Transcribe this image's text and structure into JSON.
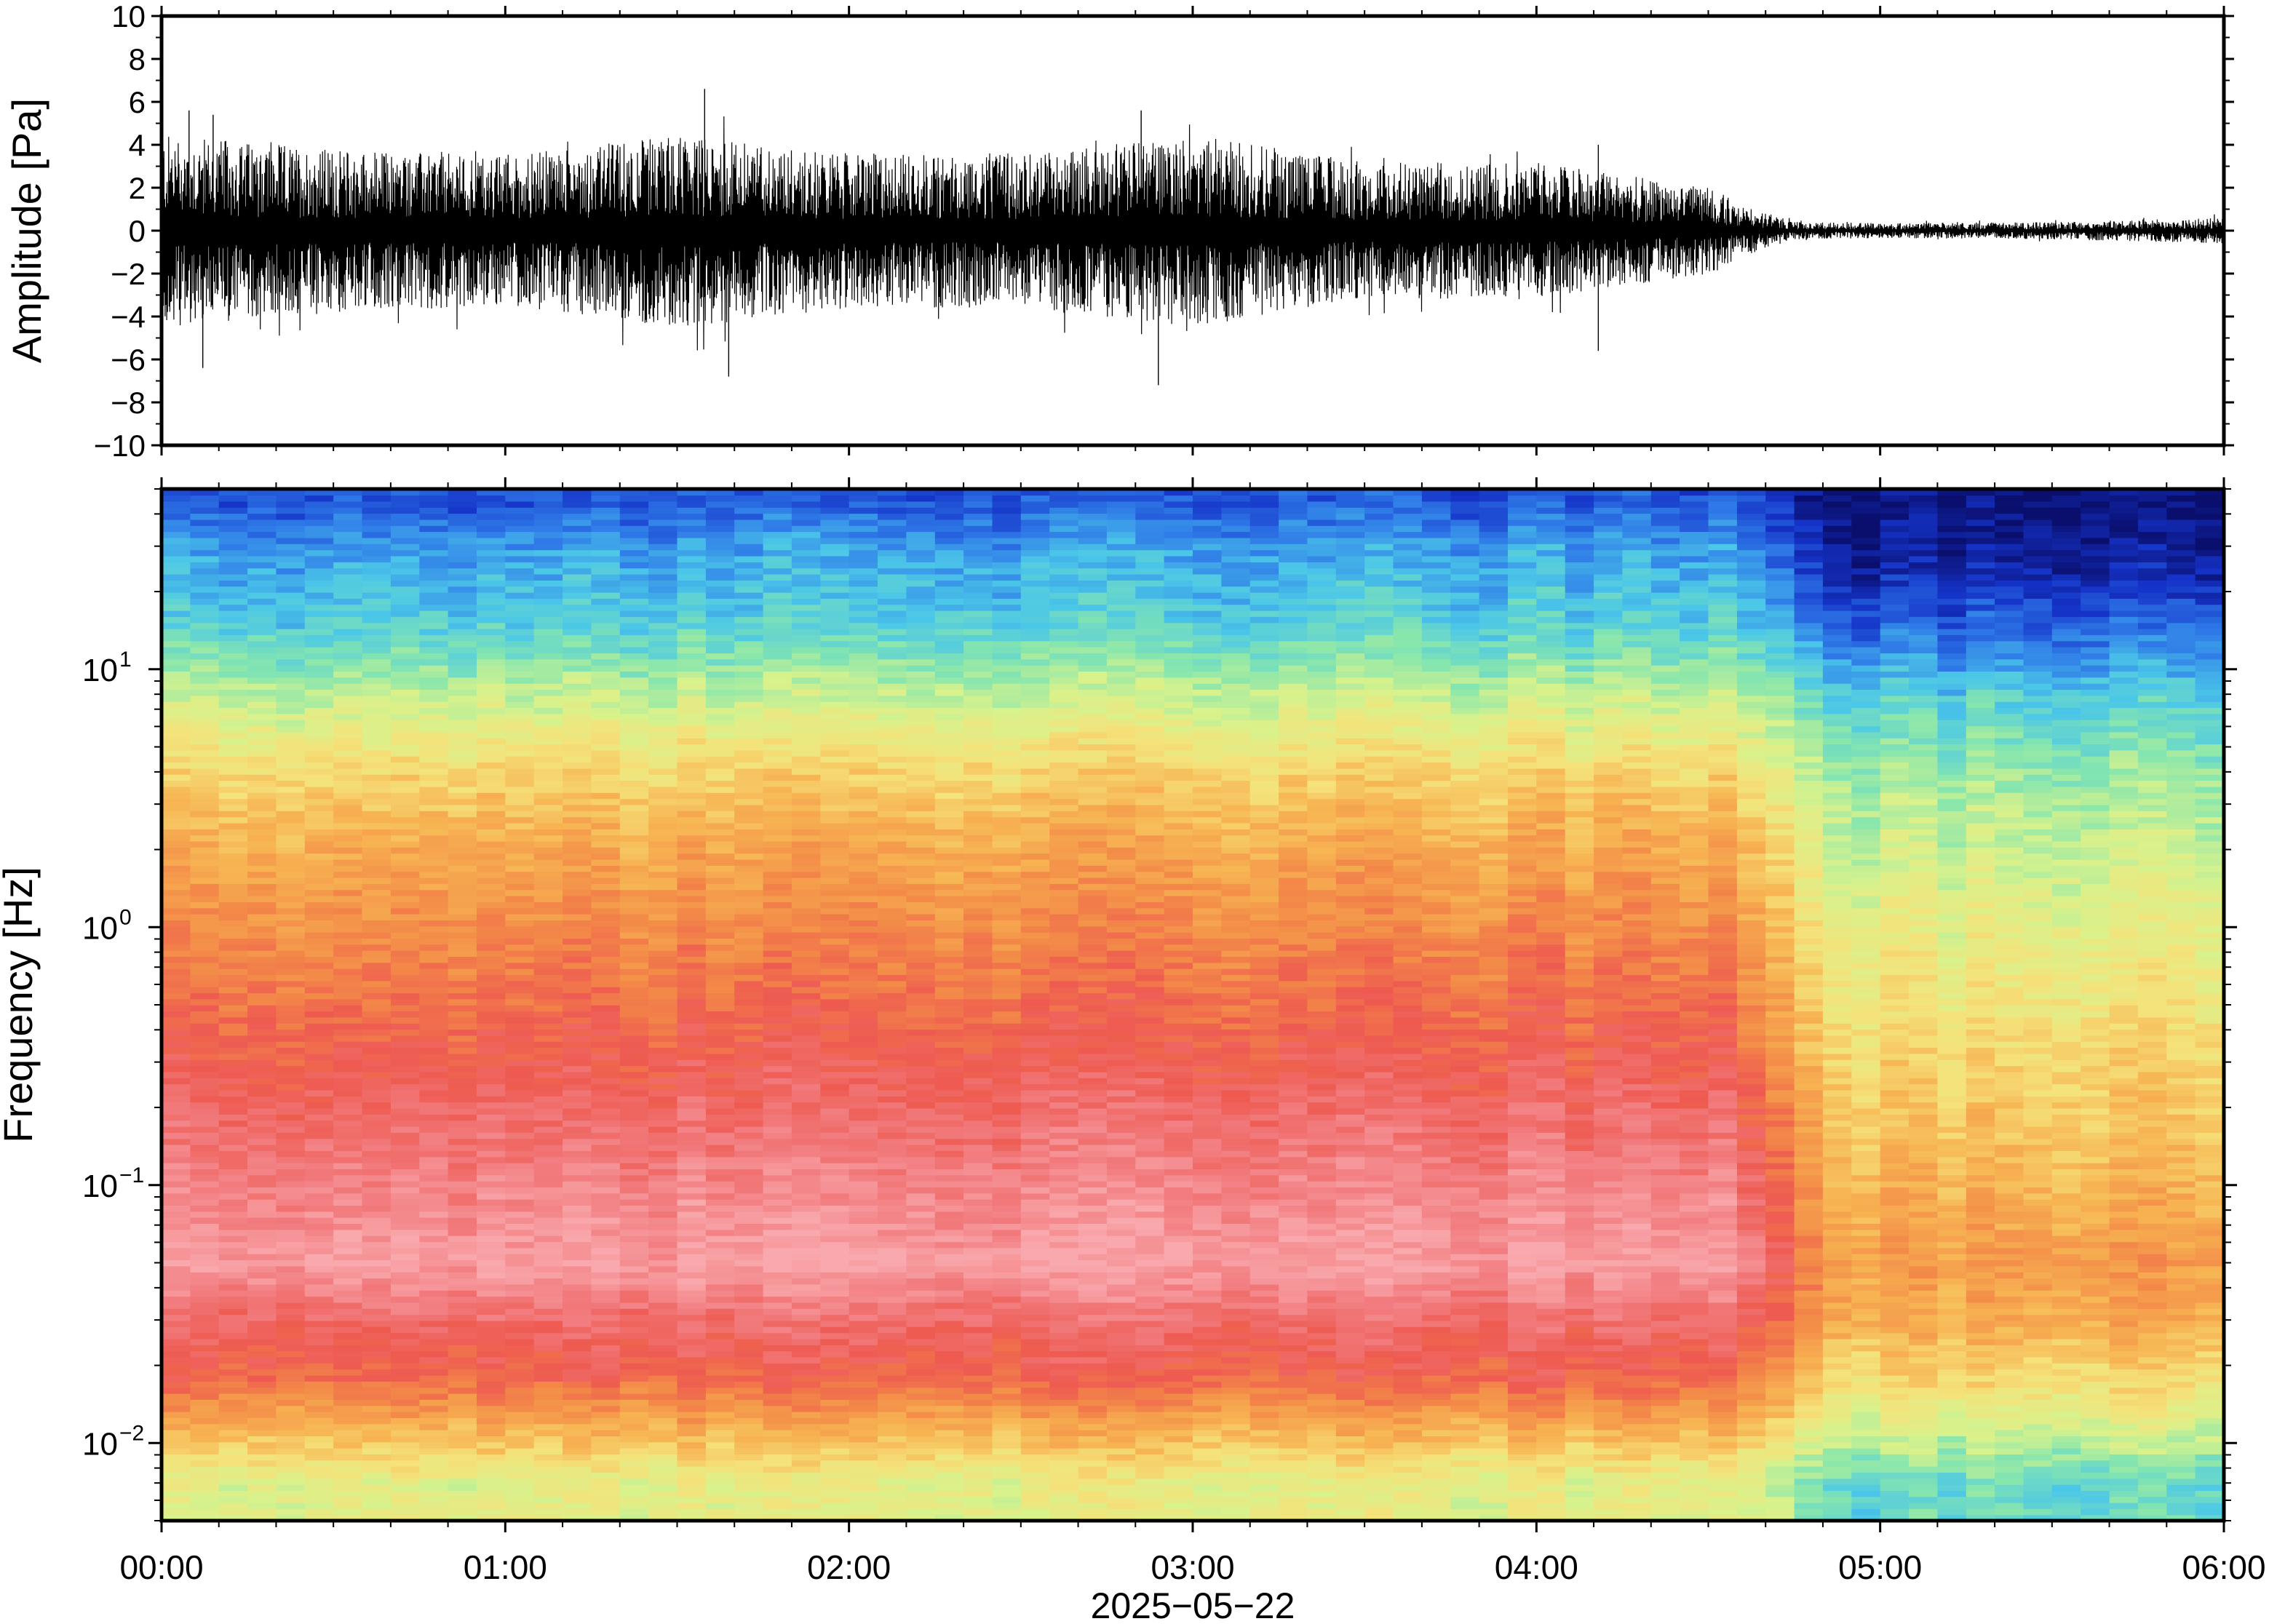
{
  "chart_data": [
    {
      "type": "line",
      "ylabel": "Amplitude [Pa]",
      "ylim": [
        -10,
        10
      ],
      "yticks": [
        "10",
        "8",
        "6",
        "4",
        "2",
        "0",
        "−2",
        "−4",
        "−6",
        "−8",
        "−10"
      ],
      "ytick_values": [
        10,
        8,
        6,
        4,
        2,
        0,
        -2,
        -4,
        -6,
        -8,
        -10
      ],
      "xlim": [
        "00:00",
        "06:00"
      ],
      "series": [
        {
          "envelope_hours": [
            0,
            0.5,
            1,
            1.5,
            2,
            2.5,
            3,
            3.5,
            4,
            4.5,
            4.6,
            4.75,
            5,
            5.5,
            6
          ],
          "envelope_max_pa": [
            4.5,
            3.8,
            3.5,
            4.5,
            3.6,
            3.6,
            4.5,
            3.2,
            3.2,
            2.0,
            1.2,
            0.4,
            0.35,
            0.4,
            0.6
          ],
          "envelope_min_pa": [
            -4.5,
            -3.8,
            -3.5,
            -4.5,
            -3.6,
            -3.6,
            -4.5,
            -3.2,
            -3.2,
            -2.0,
            -1.2,
            -0.4,
            -0.35,
            -0.4,
            -0.6
          ],
          "peaks": [
            {
              "hour": 0.08,
              "pa": 5.6
            },
            {
              "hour": 0.12,
              "pa": -6.4
            },
            {
              "hour": 0.15,
              "pa": 5.4
            },
            {
              "hour": 1.58,
              "pa": 6.6
            },
            {
              "hour": 1.65,
              "pa": -6.8
            },
            {
              "hour": 2.85,
              "pa": 5.6
            },
            {
              "hour": 2.9,
              "pa": -7.2
            },
            {
              "hour": 4.18,
              "pa": 4.0
            },
            {
              "hour": 4.18,
              "pa": -5.6
            }
          ],
          "color": "#000000"
        }
      ]
    },
    {
      "type": "heatmap",
      "xlabel": "2025−05−22",
      "ylabel": "Frequency [Hz]",
      "yscale": "log",
      "ylim_hz": [
        0.005,
        50
      ],
      "yticks": [
        {
          "base": "10",
          "exp": "1",
          "value": 10
        },
        {
          "base": "10",
          "exp": "0",
          "value": 1
        },
        {
          "base": "10",
          "exp": "−1",
          "value": 0.1
        },
        {
          "base": "10",
          "exp": "−2",
          "value": 0.01
        }
      ],
      "xticks": [
        "00:00",
        "01:00",
        "02:00",
        "03:00",
        "04:00",
        "05:00",
        "06:00"
      ],
      "xtick_hours": [
        0,
        1,
        2,
        3,
        4,
        5,
        6
      ],
      "colormap": [
        "#0a0f6e",
        "#1533c8",
        "#2f7be8",
        "#4bc7e8",
        "#86e6ae",
        "#d8f28c",
        "#f5e27a",
        "#f7b352",
        "#f38a48",
        "#ee5a50",
        "#f27d80",
        "#f9a9ad"
      ],
      "colormap_order": "low to high power",
      "description_bands_log_level": {
        "before_4_7h": [
          {
            "hz": 45,
            "level": 1.5
          },
          {
            "hz": 30,
            "level": 2.5
          },
          {
            "hz": 15,
            "level": 3.3
          },
          {
            "hz": 8,
            "level": 4.8
          },
          {
            "hz": 4,
            "level": 6.3
          },
          {
            "hz": 2,
            "level": 7.3
          },
          {
            "hz": 0.8,
            "level": 8.2
          },
          {
            "hz": 0.3,
            "level": 9.1
          },
          {
            "hz": 0.1,
            "level": 10.2
          },
          {
            "hz": 0.05,
            "level": 10.8
          },
          {
            "hz": 0.03,
            "level": 9.6
          },
          {
            "hz": 0.018,
            "level": 8.8
          },
          {
            "hz": 0.012,
            "level": 7.3
          },
          {
            "hz": 0.007,
            "level": 5.4
          }
        ],
        "after_4_7h": [
          {
            "hz": 45,
            "level": 0.1
          },
          {
            "hz": 25,
            "level": 0.6
          },
          {
            "hz": 15,
            "level": 1.7
          },
          {
            "hz": 8,
            "level": 3.2
          },
          {
            "hz": 4,
            "level": 4.3
          },
          {
            "hz": 2,
            "level": 4.9
          },
          {
            "hz": 0.8,
            "level": 5.6
          },
          {
            "hz": 0.3,
            "level": 6.3
          },
          {
            "hz": 0.1,
            "level": 7.0
          },
          {
            "hz": 0.05,
            "level": 7.6
          },
          {
            "hz": 0.03,
            "level": 7.2
          },
          {
            "hz": 0.015,
            "level": 5.8
          },
          {
            "hz": 0.007,
            "level": 3.6
          }
        ]
      }
    }
  ]
}
